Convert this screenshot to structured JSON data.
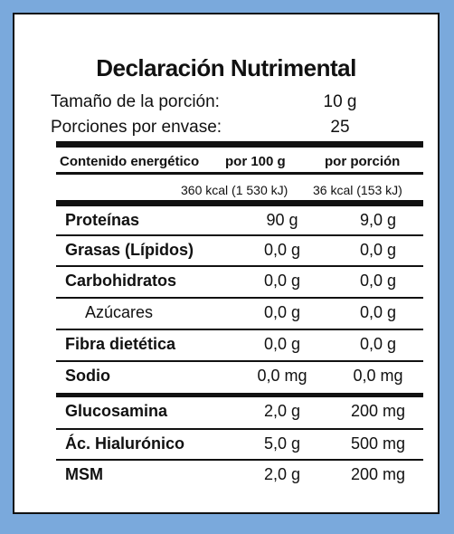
{
  "label": {
    "title": "Declaración Nutrimental",
    "serving_size_label": "Tamaño de la porción:",
    "serving_size_value": "10 g",
    "servings_label": "Porciones por envase:",
    "servings_value": "25",
    "col_energy": "Contenido energético",
    "col_per100": "por 100 g",
    "col_perserving": "por porción",
    "energy_per100": "360 kcal (1 530 kJ)",
    "energy_perserving": "36 kcal (153 kJ)"
  },
  "rows": [
    {
      "name": "Proteínas",
      "per100": "90 g",
      "perserving": "9,0 g"
    },
    {
      "name": "Grasas (Lípidos)",
      "per100": "0,0 g",
      "perserving": "0,0 g"
    },
    {
      "name": "Carbohidratos",
      "per100": "0,0 g",
      "perserving": "0,0 g"
    },
    {
      "name": "Azúcares",
      "per100": "0,0 g",
      "perserving": "0,0 g"
    },
    {
      "name": "Fibra dietética",
      "per100": "0,0 g",
      "perserving": "0,0 g"
    },
    {
      "name": "Sodio",
      "per100": "0,0 mg",
      "perserving": "0,0 mg"
    },
    {
      "name": "Glucosamina",
      "per100": "2,0 g",
      "perserving": "200 mg"
    },
    {
      "name": "Ác. Hialurónico",
      "per100": "5,0 g",
      "perserving": "500 mg"
    },
    {
      "name": "MSM",
      "per100": "2,0 g",
      "perserving": "200 mg"
    }
  ],
  "colors": {
    "background": "#7aa9dc",
    "panel": "#ffffff",
    "ink": "#111111"
  }
}
